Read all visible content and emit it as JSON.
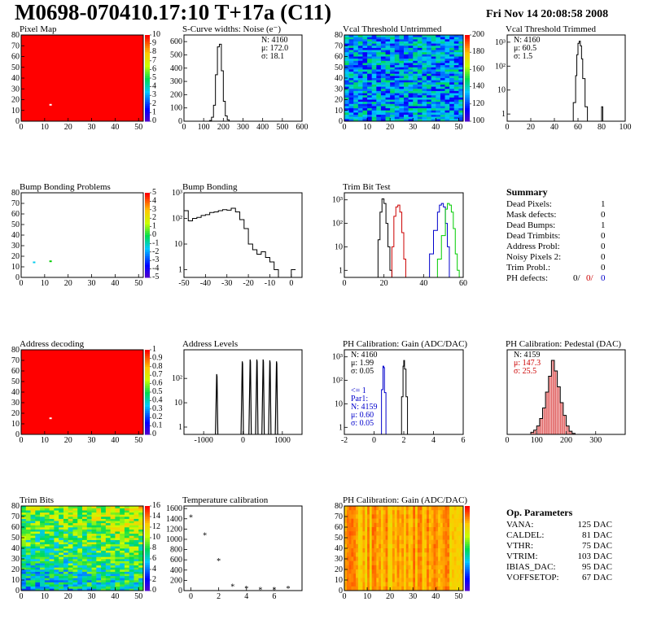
{
  "header": {
    "title": "M0698-070410.17:10 T+17a (C11)",
    "date": "Fri Nov 14 20:08:58 2008"
  },
  "colors": {
    "red": "#ff0000",
    "blue": "#0000cc",
    "green": "#00cc00",
    "black": "#000000"
  },
  "palette_labels": {
    "pixel_map": [
      "10",
      "9",
      "8",
      "7",
      "6",
      "5",
      "4",
      "3",
      "2",
      "1",
      "0"
    ],
    "bump": [
      "5",
      "4",
      "3",
      "2",
      "1",
      "0",
      "-1",
      "-2",
      "-3",
      "-4",
      "-5"
    ],
    "address": [
      "1",
      "0.9",
      "0.8",
      "0.7",
      "0.6",
      "0.5",
      "0.4",
      "0.3",
      "0.2",
      "0.1",
      "0"
    ],
    "trim_bits": [
      "16",
      "14",
      "12",
      "10",
      "8",
      "6",
      "4",
      "2",
      "0"
    ],
    "vcal": [
      "200",
      "180",
      "160",
      "140",
      "120",
      "100"
    ]
  },
  "chart_data": [
    {
      "id": "pixel_map",
      "type": "heatmap",
      "title": "Pixel Map",
      "xlim": [
        0,
        52
      ],
      "ylim": [
        0,
        80
      ],
      "x_ticks": [
        0,
        10,
        20,
        30,
        40,
        50
      ],
      "y_ticks": [
        0,
        10,
        20,
        30,
        40,
        50,
        60,
        70,
        80
      ],
      "fill_color": "#ff0000",
      "special_pixels": [
        {
          "x": 12,
          "y": 15,
          "color": "#ffffff"
        }
      ]
    },
    {
      "id": "noise",
      "type": "line",
      "title": "S-Curve widths: Noise (e⁻)",
      "xlim": [
        0,
        600
      ],
      "ylim": [
        0,
        650
      ],
      "x_ticks": [
        0,
        100,
        200,
        300,
        400,
        500,
        600
      ],
      "y_ticks": [
        0,
        100,
        200,
        300,
        400,
        500,
        600
      ],
      "stats": [
        "N: 4160",
        "μ: 172.0",
        "σ: 18.1"
      ],
      "series": [
        {
          "color": "#000000",
          "x": [
            120,
            130,
            140,
            150,
            160,
            170,
            180,
            190,
            200,
            210,
            220,
            230
          ],
          "y": [
            0,
            5,
            30,
            120,
            350,
            560,
            580,
            380,
            150,
            40,
            10,
            0
          ]
        }
      ]
    },
    {
      "id": "vcal_untrimmed",
      "type": "heatmap",
      "title": "Vcal Threshold Untrimmed",
      "xlim": [
        0,
        52
      ],
      "ylim": [
        0,
        80
      ],
      "x_ticks": [
        0,
        10,
        20,
        30,
        40,
        50
      ],
      "y_ticks": [
        0,
        10,
        20,
        30,
        40,
        50,
        60,
        70,
        80
      ],
      "value_range": [
        100,
        200
      ],
      "typical": [
        120,
        160
      ]
    },
    {
      "id": "vcal_trimmed",
      "type": "line",
      "title": "Vcal Threshold Trimmed",
      "log_y": true,
      "xlim": [
        0,
        100
      ],
      "ylim": [
        0.5,
        2000
      ],
      "x_ticks": [
        0,
        20,
        40,
        60,
        80,
        100
      ],
      "y_ticks": [
        1,
        10,
        100,
        1000
      ],
      "y_tick_labels": [
        "1",
        "10",
        "10²",
        "10³"
      ],
      "stats": [
        "N: 4160",
        "μ: 60.5",
        "σ:  1.5"
      ],
      "series": [
        {
          "color": "#000000",
          "x": [
            54,
            56,
            58,
            59,
            60,
            61,
            62,
            63,
            64,
            66,
            68,
            79,
            80,
            81
          ],
          "y": [
            0.5,
            3,
            40,
            300,
            900,
            1100,
            700,
            200,
            30,
            2,
            0.5,
            0.5,
            2,
            0.5
          ]
        }
      ]
    },
    {
      "id": "bump_problems",
      "type": "heatmap",
      "title": "Bump Bonding Problems",
      "xlim": [
        0,
        52
      ],
      "ylim": [
        0,
        80
      ],
      "x_ticks": [
        0,
        10,
        20,
        30,
        40,
        50
      ],
      "y_ticks": [
        0,
        10,
        20,
        30,
        40,
        50,
        60,
        70,
        80
      ],
      "fill_color": "#ffffff",
      "special_pixels": [
        {
          "x": 5,
          "y": 14,
          "color": "#00ccee"
        },
        {
          "x": 12,
          "y": 15,
          "color": "#00cc00"
        }
      ]
    },
    {
      "id": "bump_bonding",
      "type": "line",
      "title": "Bump Bonding",
      "log_y": true,
      "xlim": [
        -50,
        5
      ],
      "ylim": [
        0.5,
        1000
      ],
      "x_ticks": [
        -50,
        -40,
        -30,
        -20,
        -10,
        0
      ],
      "y_ticks": [
        1,
        10,
        100,
        1000
      ],
      "y_tick_labels": [
        "1",
        "10",
        "10²",
        "10³"
      ],
      "series": [
        {
          "color": "#000000",
          "x": [
            -50,
            -48,
            -46,
            -44,
            -42,
            -40,
            -38,
            -36,
            -34,
            -32,
            -30,
            -28,
            -26,
            -24,
            -22,
            -20,
            -18,
            -16,
            -14,
            -12,
            -10,
            -8,
            -6,
            -2,
            0,
            2
          ],
          "y": [
            200,
            80,
            100,
            110,
            130,
            140,
            170,
            180,
            200,
            220,
            210,
            250,
            180,
            90,
            40,
            10,
            6,
            4,
            5,
            3,
            2,
            1,
            0.5,
            0.5,
            1,
            1
          ]
        }
      ]
    },
    {
      "id": "trim_bit_test",
      "type": "line",
      "title": "Trim Bit Test",
      "log_y": true,
      "xlim": [
        0,
        60
      ],
      "ylim": [
        0.5,
        2000
      ],
      "x_ticks": [
        0,
        20,
        40,
        60
      ],
      "y_ticks": [
        1,
        10,
        100,
        1000
      ],
      "y_tick_labels": [
        "1",
        "10",
        "10²",
        "10³"
      ],
      "series": [
        {
          "color": "#000000",
          "x": [
            16,
            17,
            18,
            19,
            20,
            21,
            22,
            23,
            24
          ],
          "y": [
            0.5,
            20,
            300,
            1100,
            700,
            100,
            10,
            1,
            0.5
          ]
        },
        {
          "color": "#cc0000",
          "x": [
            23,
            24,
            25,
            26,
            27,
            28,
            29,
            30,
            31
          ],
          "y": [
            0.5,
            10,
            200,
            500,
            600,
            300,
            40,
            3,
            0.5
          ]
        },
        {
          "color": "#0000cc",
          "x": [
            41,
            43,
            45,
            47,
            48,
            49,
            50,
            51,
            52,
            53
          ],
          "y": [
            0.5,
            5,
            50,
            300,
            600,
            700,
            500,
            100,
            10,
            0.5
          ]
        },
        {
          "color": "#00cc00",
          "x": [
            45,
            47,
            49,
            51,
            52,
            53,
            54,
            55,
            56,
            57,
            58
          ],
          "y": [
            0.5,
            3,
            30,
            400,
            700,
            600,
            300,
            60,
            5,
            1,
            0.5
          ]
        }
      ]
    },
    {
      "id": "address_decoding",
      "type": "heatmap",
      "title": "Address decoding",
      "xlim": [
        0,
        52
      ],
      "ylim": [
        0,
        80
      ],
      "x_ticks": [
        0,
        10,
        20,
        30,
        40,
        50
      ],
      "y_ticks": [
        0,
        10,
        20,
        30,
        40,
        50,
        60,
        70,
        80
      ],
      "fill_color": "#ff0000",
      "special_pixels": [
        {
          "x": 12,
          "y": 15,
          "color": "#ffffff"
        }
      ]
    },
    {
      "id": "address_levels",
      "type": "line",
      "title": "Address Levels",
      "log_y": true,
      "xlim": [
        -1500,
        1500
      ],
      "ylim": [
        0.5,
        1500
      ],
      "x_ticks": [
        -1000,
        0,
        1000
      ],
      "y_ticks": [
        1,
        10,
        100
      ],
      "y_tick_labels": [
        "1",
        "10",
        "10²"
      ],
      "peaks": [
        {
          "x": -700,
          "h": 150
        },
        {
          "x": -50,
          "h": 500
        },
        {
          "x": 150,
          "h": 600
        },
        {
          "x": 320,
          "h": 600
        },
        {
          "x": 480,
          "h": 600
        },
        {
          "x": 650,
          "h": 550
        },
        {
          "x": 820,
          "h": 500
        }
      ]
    },
    {
      "id": "ph_gain",
      "type": "line",
      "title": "PH Calibration: Gain (ADC/DAC)",
      "log_y": true,
      "xlim": [
        -2,
        6
      ],
      "ylim": [
        0.5,
        2000
      ],
      "x_ticks": [
        -2,
        0,
        2,
        4,
        6
      ],
      "y_ticks": [
        1,
        10,
        100,
        1000
      ],
      "y_tick_labels": [
        "1",
        "10",
        "10²",
        "10³"
      ],
      "stats": [
        "N: 4160",
        "μ: 1.99",
        "σ: 0.05"
      ],
      "stats_blue": [
        "<= 1",
        "Par1:",
        "N: 4159",
        "μ: 0.60",
        "σ: 0.05"
      ],
      "series": [
        {
          "color": "#000000",
          "x": [
            1.75,
            1.85,
            1.95,
            2.0,
            2.05,
            2.15,
            2.25
          ],
          "y": [
            0.5,
            20,
            400,
            700,
            300,
            20,
            0.5
          ]
        },
        {
          "color": "#0000cc",
          "x": [
            0.4,
            0.5,
            0.6,
            0.65,
            0.7,
            0.8
          ],
          "y": [
            0.5,
            40,
            400,
            350,
            30,
            0.5
          ]
        }
      ]
    },
    {
      "id": "ph_pedestal",
      "type": "bar",
      "title": "PH Calibration: Pedestal (DAC)",
      "xlim": [
        0,
        400
      ],
      "ylim": [
        0,
        80
      ],
      "x_ticks": [
        0,
        100,
        200,
        300
      ],
      "stats": [
        "N: 4159"
      ],
      "stats_red": [
        "μ: 147.3",
        "σ: 25.5"
      ],
      "series": [
        {
          "color": "#000000",
          "x": [
            70,
            80,
            90,
            100,
            110,
            120,
            130,
            140,
            150,
            160,
            170,
            180,
            190,
            200,
            210,
            220,
            230
          ],
          "y": [
            0,
            2,
            4,
            8,
            15,
            25,
            40,
            55,
            70,
            60,
            45,
            30,
            18,
            8,
            3,
            1,
            0
          ]
        }
      ]
    },
    {
      "id": "trim_bits",
      "type": "heatmap",
      "title": "Trim Bits",
      "xlim": [
        0,
        52
      ],
      "ylim": [
        0,
        80
      ],
      "x_ticks": [
        0,
        10,
        20,
        30,
        40,
        50
      ],
      "y_ticks": [
        0,
        10,
        20,
        30,
        40,
        50,
        60,
        70,
        80
      ],
      "value_range": [
        0,
        16
      ]
    },
    {
      "id": "temperature",
      "type": "scatter",
      "title": "Temperature calibration",
      "xlim": [
        -0.5,
        8
      ],
      "ylim": [
        0,
        1650
      ],
      "x_ticks": [
        0,
        2,
        4,
        6
      ],
      "y_ticks": [
        0,
        200,
        400,
        600,
        800,
        1000,
        1200,
        1400,
        1600
      ],
      "series": [
        {
          "color": "#000000",
          "x": [
            0,
            1,
            2,
            3,
            4,
            5,
            6,
            7
          ],
          "y": [
            1450,
            1100,
            600,
            100,
            60,
            40,
            40,
            60
          ]
        }
      ]
    },
    {
      "id": "ph_gain_map",
      "type": "heatmap",
      "title": "PH Calibration: Gain (ADC/DAC)",
      "xlim": [
        0,
        52
      ],
      "ylim": [
        0,
        80
      ],
      "x_ticks": [
        0,
        10,
        20,
        30,
        40,
        50
      ],
      "y_ticks": [
        0,
        10,
        20,
        30,
        40,
        50,
        60,
        70,
        80
      ]
    }
  ],
  "summary": {
    "title": "Summary",
    "rows": [
      {
        "label": "Dead Pixels:",
        "value": "1"
      },
      {
        "label": "Mask defects:",
        "value": "0"
      },
      {
        "label": "Dead Bumps:",
        "value": "1"
      },
      {
        "label": "Dead Trimbits:",
        "value": "0"
      },
      {
        "label": "Address Probl:",
        "value": "0"
      },
      {
        "label": "Noisy Pixels 2:",
        "value": "0"
      },
      {
        "label": "Trim Probl.:",
        "value": "0"
      }
    ],
    "ph_label": "PH defects:",
    "ph_v1": "0/",
    "ph_v2": "0/",
    "ph_v3": "0"
  },
  "op_params": {
    "title": "Op. Parameters",
    "rows": [
      {
        "label": "VANA:",
        "value": "125 DAC"
      },
      {
        "label": "CALDEL:",
        "value": "81 DAC"
      },
      {
        "label": "VTHR:",
        "value": "75 DAC"
      },
      {
        "label": "VTRIM:",
        "value": "103 DAC"
      },
      {
        "label": "IBIAS_DAC:",
        "value": "95 DAC"
      },
      {
        "label": "VOFFSETOP:",
        "value": "67 DAC"
      }
    ]
  }
}
